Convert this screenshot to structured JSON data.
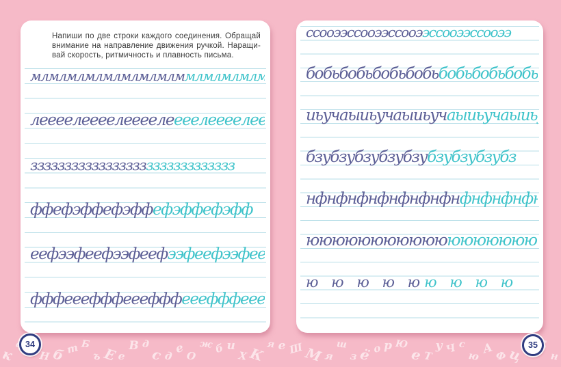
{
  "colors": {
    "background_pink": "#f6bac8",
    "page_white": "#ffffff",
    "ruled_line_blue": "#b5dde7",
    "ink_dark_blue": "#5c5f96",
    "ink_teal": "#3fc3ca",
    "instruction_text": "#3a3a3a",
    "badge_navy": "#2f3c80"
  },
  "instructions": {
    "full_text": "Напиши по две строки каждого соединения. Обращай внимание на направление движения ручкой. Наращивай скорость, ритмичность и плавность письма.",
    "lines": [
      "Напиши по две строки каждого соединения. Обращай",
      "внимание на направление движения ручкой. Наращи-",
      "вай скорость, ритмичность и плавность письма."
    ]
  },
  "left_page": {
    "page_number": "34",
    "rows": [
      {
        "dark": "млмлмлмлмлмлмлмлм",
        "teal": "млмлмлмлмлмлм"
      },
      {
        "dark": "леееелеееелееееле",
        "teal": "ееелеееелееее"
      },
      {
        "dark": "ззззззззззззззззз",
        "teal": "ззззззззззззз"
      },
      {
        "dark": "ффефэффефэфф",
        "teal": "ефэффефэфф"
      },
      {
        "dark": "еефээфеефээфееф",
        "teal": "ээфеефээфееф"
      },
      {
        "dark": "фффееефффеееффф",
        "teal": "ееефффеееффф"
      }
    ]
  },
  "right_page": {
    "page_number": "35",
    "rows": [
      {
        "dark": "ссооээссооээссооэ",
        "teal": "эссооээссооээ"
      },
      {
        "dark": "бобьбобьбобьбобь",
        "teal": "бобьбобьбобь"
      },
      {
        "dark": "иьучаыиьучаыиьуч",
        "teal": "аыиьучаыиьуч"
      },
      {
        "dark": "бзубзубзубзубзу",
        "teal": "бзубзубзубз"
      },
      {
        "dark": "нфнфнфнфнфнфнфн",
        "teal": "фнфнфнфнфнф"
      },
      {
        "dark": "ююююююююююю",
        "teal": "ююююююююю"
      },
      {
        "dark": "ю ю ю ю ю",
        "teal": "ю ю ю ю"
      }
    ]
  },
  "decoration": {
    "letters": [
      "к",
      "а",
      "ф",
      "Н",
      "б",
      "т",
      "Б",
      "ъ",
      "Е",
      "е",
      "В",
      "д",
      "с",
      "д",
      "е",
      "О",
      "ж",
      "б",
      "и",
      "Х",
      "К",
      "я",
      "е",
      "Ш",
      "М",
      "я",
      "ш",
      "з",
      "ё",
      "о",
      "р",
      "Ю",
      "е",
      "Т",
      "у",
      "Ч",
      "с",
      "ю",
      "А",
      "Ф",
      "ц",
      "И",
      "Б",
      "н"
    ]
  }
}
